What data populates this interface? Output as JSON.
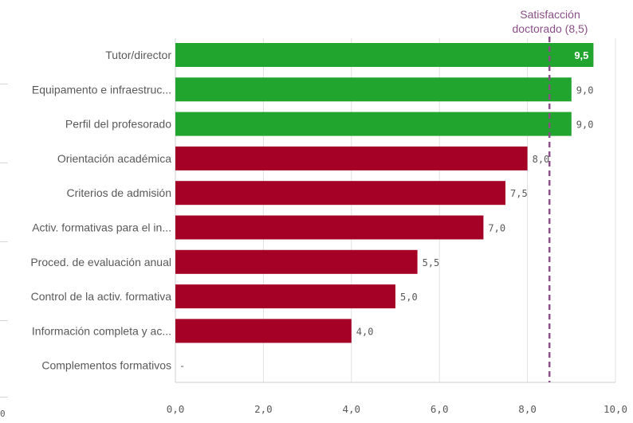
{
  "chart_data": {
    "type": "bar",
    "orientation": "horizontal",
    "categories": [
      "Tutor/director",
      "Equipamento e infraestruc...",
      "Perfil del profesorado",
      "Orientación académica",
      "Criterios de admisión",
      "Activ. formativas para el in...",
      "Proced. de evaluación anual",
      "Control de la activ. formativa",
      "Información completa y ac...",
      "Complementos formativos"
    ],
    "values": [
      9.5,
      9.0,
      9.0,
      8.0,
      7.5,
      7.0,
      5.5,
      5.0,
      4.0,
      null
    ],
    "value_labels": [
      "9,5",
      "9,0",
      "9,0",
      "8,0",
      "7,5",
      "7,0",
      "5,5",
      "5,0",
      "4,0",
      "-"
    ],
    "reference_line": {
      "value": 8.5,
      "label_line1": "Satisfacción",
      "label_line2": "doctorado (8,5)",
      "color": "#8a4f87"
    },
    "threshold": 8.5,
    "colors": {
      "above": "#22a52e",
      "below": "#a50026",
      "grid": "#e0e0e0"
    },
    "xlim": [
      0,
      10
    ],
    "xticks": [
      0,
      2,
      4,
      6,
      8,
      10
    ],
    "xtick_labels": [
      "0,0",
      "2,0",
      "4,0",
      "6,0",
      "8,0",
      "10,0"
    ],
    "grid": true,
    "title": "",
    "xlabel": "",
    "ylabel": ""
  },
  "edge_fragment": "0"
}
